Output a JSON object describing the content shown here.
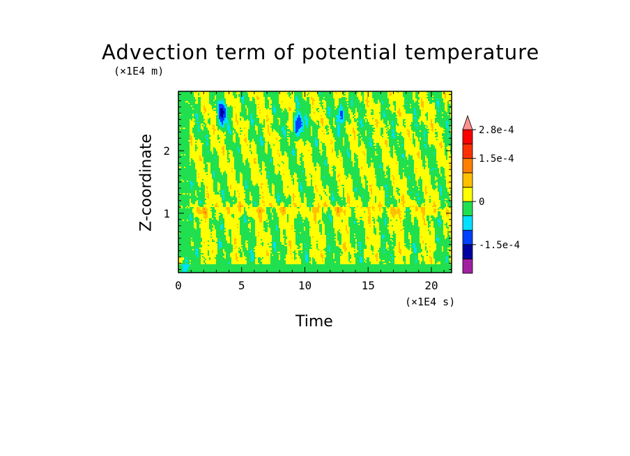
{
  "chart_data": {
    "type": "heatmap",
    "title": "Advection term of potential temperature",
    "xlabel": "Time",
    "ylabel": "Z-coordinate",
    "x_multiplier": "(×1E4 s)",
    "y_multiplier": "(×1E4 m)",
    "xlim": [
      0,
      21.6
    ],
    "ylim": [
      0.05,
      2.95
    ],
    "x_ticks": [
      0,
      5,
      10,
      15,
      20
    ],
    "y_ticks": [
      1,
      2
    ],
    "colorbar": {
      "levels": [
        -0.00021,
        -0.00015,
        -0.0001,
        -5e-05,
        0,
        5e-05,
        0.0001,
        0.00015,
        0.00021,
        0.00028
      ],
      "tick_labels": [
        "2.8e-4",
        "1.5e-4",
        "0",
        "-1.5e-4"
      ],
      "tick_values": [
        0.00028,
        0.00015,
        0,
        -0.00015
      ],
      "colors": [
        "#a020a0",
        "#0000a0",
        "#0040ff",
        "#00e0ff",
        "#20e050",
        "#ffff00",
        "#ffc000",
        "#ff8000",
        "#ff3000",
        "#ff0000",
        "#ff9090"
      ],
      "extend": "max"
    },
    "grid": false,
    "features": {
      "dominant_band": "alternating diagonal streaks of slightly positive (yellow) and slightly negative (green) values across the whole domain",
      "positive_band_z": [
        0.9,
        1.2
      ],
      "strong_negative_cells": [
        {
          "x": 9.5,
          "z": 2.4,
          "value": -0.00018
        },
        {
          "x": 3.5,
          "z": 2.6,
          "value": -0.00015
        },
        {
          "x": 13.0,
          "z": 2.6,
          "value": -0.00012
        },
        {
          "x": 0.6,
          "z": 0.25,
          "value": -6e-05
        }
      ]
    }
  }
}
